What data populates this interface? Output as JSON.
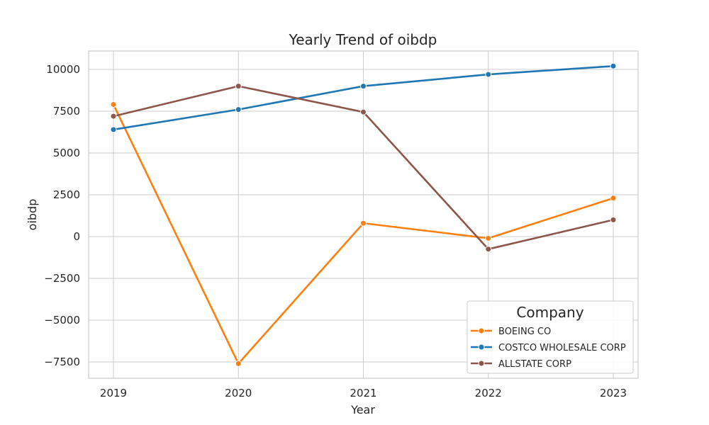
{
  "chart_data": {
    "type": "line",
    "title": "Yearly Trend of oibdp",
    "xlabel": "Year",
    "ylabel": "oibdp",
    "x": [
      "2019",
      "2020",
      "2021",
      "2022",
      "2023"
    ],
    "ylim": [
      -8500,
      11000
    ],
    "y_ticks": [
      10000,
      7500,
      5000,
      2500,
      0,
      -2500,
      -5000,
      -7500
    ],
    "y_tick_labels": [
      "10000",
      "7500",
      "5000",
      "2500",
      "0",
      "−2500",
      "−5000",
      "−7500"
    ],
    "grid": true,
    "legend_title": "Company",
    "legend_position": "lower-right",
    "series": [
      {
        "name": "BOEING CO",
        "color": "#ff7f0e",
        "values": [
          7900,
          -7600,
          800,
          -100,
          2300
        ]
      },
      {
        "name": "COSTCO WHOLESALE CORP",
        "color": "#1f77b4",
        "values": [
          6400,
          7600,
          9000,
          9700,
          10200
        ]
      },
      {
        "name": "ALLSTATE CORP",
        "color": "#8c564b",
        "values": [
          7200,
          9000,
          7450,
          -750,
          1000
        ]
      }
    ]
  }
}
